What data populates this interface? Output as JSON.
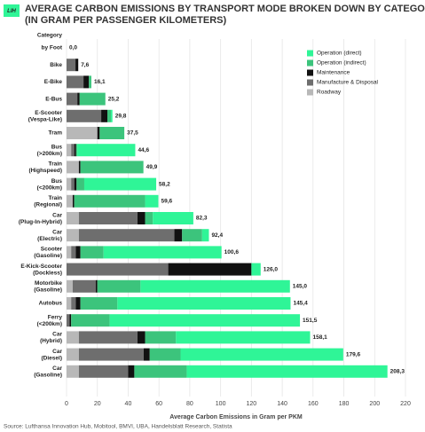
{
  "chart_data": {
    "type": "stacked-bar-horizontal",
    "title": "AVERAGE CARBON EMISSIONS BY TRANSPORT MODE BROKEN DOWN BY CATEGORY\n(IN GRAM PER PASSENGER KILOMETERS)",
    "logo": "LIH",
    "category_header": "Category",
    "categories": [
      "by Foot",
      "Bike",
      "E-Bike",
      "E-Bus",
      "E-Scooter\n(Vespa-Like)",
      "Tram",
      "Bus\n(>200km)",
      "Train\n(Highspeed)",
      "Bus\n(<200km)",
      "Train\n(Regional)",
      "Car\n(Plug-In-Hybrid)",
      "Car\n(Electric)",
      "Scooter\n(Gasoline)",
      "E-Kick-Scooter\n(Dockless)",
      "Motorbike\n(Gasoline)",
      "Autobus",
      "Ferry\n(<200km)",
      "Car\n(Hybrid)",
      "Car\n(Diesel)",
      "Car\n(Gasoline)"
    ],
    "series": [
      {
        "name": "Roadway",
        "color": "#b8b8b8",
        "values": [
          0,
          0,
          0,
          0,
          0,
          20,
          3,
          8,
          3,
          4,
          8,
          8,
          3,
          0,
          4,
          3,
          0,
          8,
          8,
          8
        ]
      },
      {
        "name": "Manufacture & Disposal",
        "color": "#6e6e6e",
        "values": [
          0,
          5.8,
          11,
          7,
          22.5,
          0,
          2,
          0,
          2,
          0,
          38,
          62,
          3,
          66,
          15,
          3,
          2,
          38,
          42,
          32
        ]
      },
      {
        "name": "Maintenance",
        "color": "#111111",
        "values": [
          0,
          1.8,
          3.5,
          1.5,
          4,
          1.5,
          1.2,
          1,
          1.5,
          1,
          5,
          5,
          3,
          54,
          1,
          3,
          1,
          5,
          4,
          4
        ]
      },
      {
        "name": "Operation (indirect)",
        "color": "#3cc47c",
        "values": [
          0,
          0,
          1.6,
          16.7,
          2.3,
          16,
          0.8,
          40.9,
          5,
          46,
          5,
          13,
          15,
          0,
          28,
          24,
          25,
          20,
          20,
          34
        ]
      },
      {
        "name": "Operation (direct)",
        "color": "#2ff597",
        "values": [
          0,
          0,
          0,
          0,
          1,
          0,
          37.6,
          0,
          46.7,
          8.6,
          26.3,
          4.4,
          76.6,
          6,
          97,
          112.4,
          123.5,
          87.1,
          105.6,
          130.3
        ]
      }
    ],
    "legend_order": [
      4,
      3,
      2,
      1,
      0
    ],
    "totals": [
      0,
      7.6,
      16.1,
      25.2,
      29.8,
      37.5,
      44.6,
      49.9,
      58.2,
      59.6,
      82.3,
      92.4,
      100.6,
      126,
      145,
      145.4,
      151.5,
      158.1,
      179.6,
      208.3
    ],
    "total_labels": [
      "0,0",
      "7,6",
      "16,1",
      "25,2",
      "29,8",
      "37,5",
      "44,6",
      "49,9",
      "58,2",
      "59,6",
      "82,3",
      "92,4",
      "100,6",
      "126,0",
      "145,0",
      "145,4",
      "151,5",
      "158,1",
      "179,6",
      "208,3"
    ],
    "xlabel": "Average Carbon Emissions in Gram per PKM",
    "xlim": [
      0,
      220
    ],
    "xticks": [
      0,
      20,
      40,
      60,
      80,
      100,
      120,
      140,
      160,
      180,
      200,
      220
    ],
    "grid": true,
    "legend_position": "upper right",
    "source": "Source: Lufthansa Innovation Hub, Mobitool, BMVI, UBA, Handelsblatt Research, Statista"
  }
}
